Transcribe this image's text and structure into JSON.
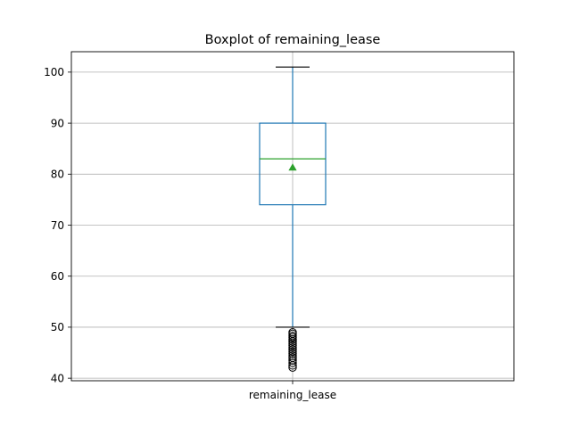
{
  "chart_data": {
    "type": "boxplot",
    "title": "Boxplot of remaining_lease",
    "xlabel": "",
    "ylabel": "",
    "categories": [
      "remaining_lease"
    ],
    "ylim": [
      39.5,
      104
    ],
    "yticks": [
      40,
      50,
      60,
      70,
      80,
      90,
      100
    ],
    "grid": true,
    "boxes": [
      {
        "name": "remaining_lease",
        "whisker_low": 50,
        "q1": 74,
        "median": 83,
        "q3": 90,
        "whisker_high": 101,
        "mean": 81.3,
        "fliers": [
          49,
          48.7,
          48.3,
          48,
          47.6,
          47.2,
          46.8,
          46.4,
          46,
          45.6,
          45.2,
          44.8,
          44.4,
          44,
          43.5,
          43,
          42.5,
          42.1
        ]
      }
    ],
    "colors": {
      "box": "#1f77b4",
      "median": "#2ca02c",
      "mean_marker": "#2ca02c",
      "flier": "#000000",
      "grid": "#b0b0b0"
    }
  }
}
